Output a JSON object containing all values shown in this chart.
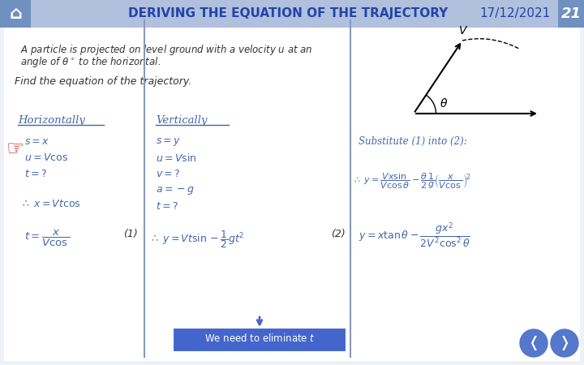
{
  "title": "Deriving the Equation of the Trajectory",
  "date": "17/12/2021",
  "page": "21",
  "bg_color": "#ffffff",
  "header_bg": "#b0c0dd",
  "header_left_color": "#7090c0",
  "body_text_color": "#4466aa",
  "divider_color": "#8899bb",
  "box_color": "#4466cc",
  "nav_color": "#5577cc",
  "title_font_size": 11,
  "body_font_size": 9
}
